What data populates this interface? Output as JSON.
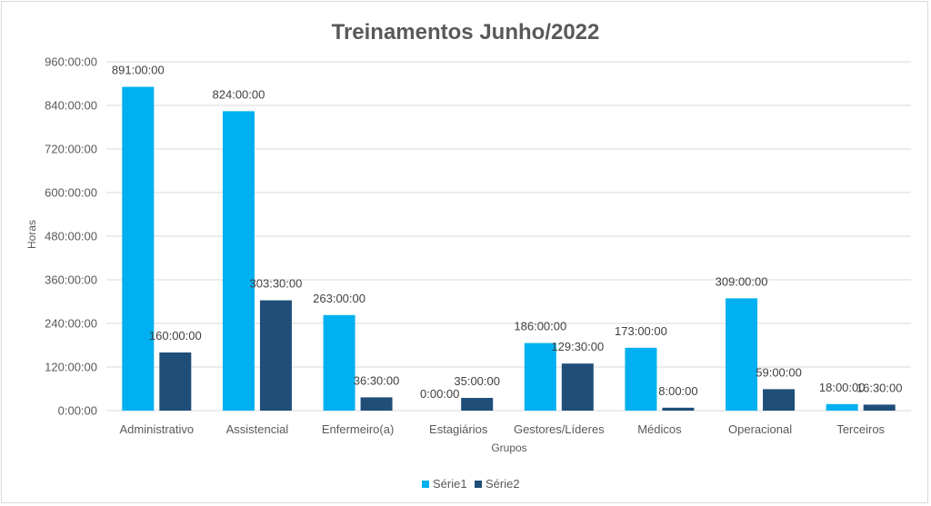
{
  "chart_data": {
    "type": "bar",
    "title": "Treinamentos Junho/2022",
    "xlabel": "Grupos",
    "ylabel": "Horas",
    "ylim": [
      0,
      960
    ],
    "yticks": [
      0,
      120,
      240,
      360,
      480,
      600,
      720,
      840,
      960
    ],
    "ytick_labels": [
      "0:00:00",
      "120:00:00",
      "240:00:00",
      "360:00:00",
      "480:00:00",
      "600:00:00",
      "720:00:00",
      "840:00:00",
      "960:00:00"
    ],
    "grid": true,
    "legend_position": "bottom",
    "categories": [
      "Administrativo",
      "Assistencial",
      "Enfermeiro(a)",
      "Estagiários",
      "Gestores/Líderes",
      "Médicos",
      "Operacional",
      "Terceiros"
    ],
    "series": [
      {
        "name": "Série1",
        "color": "#00b0f0",
        "values": [
          891,
          824,
          263,
          0,
          186,
          173,
          309,
          18
        ],
        "labels": [
          "891:00:00",
          "824:00:00",
          "263:00:00",
          "0:00:00",
          "186:00:00",
          "173:00:00",
          "309:00:00",
          "18:00:00"
        ]
      },
      {
        "name": "Série2",
        "color": "#1f4e79",
        "values": [
          160,
          303.5,
          36.5,
          35,
          129.5,
          8,
          59,
          16.5
        ],
        "labels": [
          "160:00:00",
          "303:30:00",
          "36:30:00",
          "35:00:00",
          "129:30:00",
          "8:00:00",
          "59:00:00",
          "16:30:00"
        ]
      }
    ]
  }
}
